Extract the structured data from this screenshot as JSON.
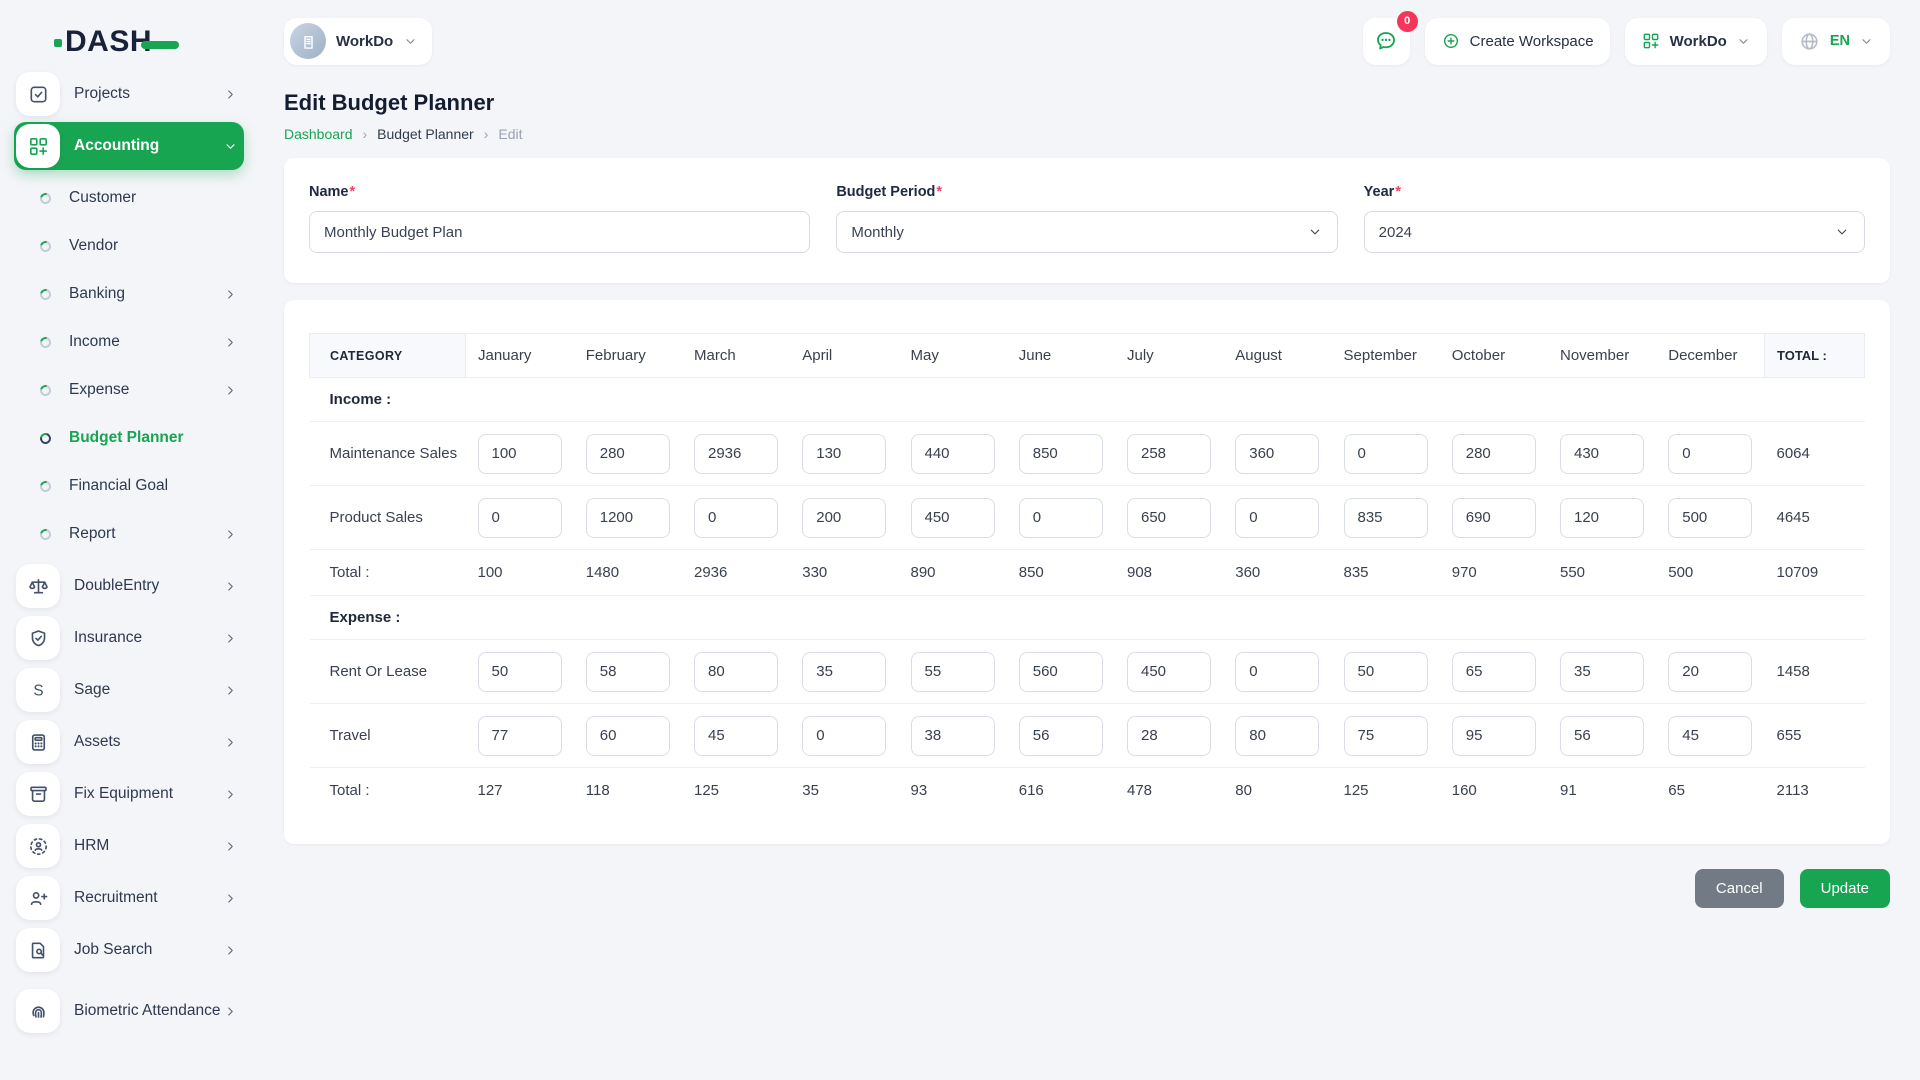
{
  "colors": {
    "accent": "#17a552",
    "badge": "#f5365c",
    "navy": "#18223a"
  },
  "brand": {
    "logo_text": "DASH"
  },
  "sidebar": {
    "items": [
      {
        "label": "Projects",
        "icon": "checkbox",
        "chevron": "right",
        "type": "top"
      },
      {
        "label": "Accounting",
        "icon": "grid-plus",
        "chevron": "down",
        "type": "top",
        "active": true
      },
      {
        "label": "Customer",
        "type": "sub"
      },
      {
        "label": "Vendor",
        "type": "sub"
      },
      {
        "label": "Banking",
        "type": "sub",
        "chevron": "right"
      },
      {
        "label": "Income",
        "type": "sub",
        "chevron": "right"
      },
      {
        "label": "Expense",
        "type": "sub",
        "chevron": "right"
      },
      {
        "label": "Budget Planner",
        "type": "sub",
        "active": true
      },
      {
        "label": "Financial Goal",
        "type": "sub"
      },
      {
        "label": "Report",
        "type": "sub",
        "chevron": "right"
      },
      {
        "label": "DoubleEntry",
        "icon": "scales",
        "chevron": "right",
        "type": "top"
      },
      {
        "label": "Insurance",
        "icon": "shield-check",
        "chevron": "right",
        "type": "top"
      },
      {
        "label": "Sage",
        "icon": "sage",
        "chevron": "right",
        "type": "top"
      },
      {
        "label": "Assets",
        "icon": "calculator",
        "chevron": "right",
        "type": "top"
      },
      {
        "label": "Fix Equipment",
        "icon": "archive",
        "chevron": "right",
        "type": "top"
      },
      {
        "label": "HRM",
        "icon": "person-frame",
        "chevron": "right",
        "type": "top"
      },
      {
        "label": "Recruitment",
        "icon": "person-plus",
        "chevron": "right",
        "type": "top"
      },
      {
        "label": "Job Search",
        "icon": "doc-search",
        "chevron": "right",
        "type": "top"
      },
      {
        "label": "Biometric Attendance",
        "icon": "fingerprint",
        "chevron": "right",
        "type": "top",
        "twoline": true
      }
    ]
  },
  "topbar": {
    "workspace_chip": "WorkDo",
    "messages_badge": "0",
    "create_workspace": "Create Workspace",
    "workspace_menu": "WorkDo",
    "language": "EN"
  },
  "page": {
    "title": "Edit Budget Planner",
    "breadcrumb": [
      "Dashboard",
      "Budget Planner",
      "Edit"
    ],
    "breadcrumb_separator": "›"
  },
  "form": {
    "required_mark": "*",
    "name": {
      "label": "Name",
      "value": "Monthly Budget Plan"
    },
    "period": {
      "label": "Budget Period",
      "value": "Monthly"
    },
    "year": {
      "label": "Year",
      "value": "2024"
    }
  },
  "table": {
    "category_header": "CATEGORY",
    "total_header": "TOTAL :",
    "months": [
      "January",
      "February",
      "March",
      "April",
      "May",
      "June",
      "July",
      "August",
      "September",
      "October",
      "November",
      "December"
    ],
    "sections": [
      {
        "label": "Income :",
        "rows": [
          {
            "label": "Maintenance Sales",
            "values": [
              "100",
              "280",
              "2936",
              "130",
              "440",
              "850",
              "258",
              "360",
              "0",
              "280",
              "430",
              "0"
            ],
            "total": "6064"
          },
          {
            "label": "Product Sales",
            "values": [
              "0",
              "1200",
              "0",
              "200",
              "450",
              "0",
              "650",
              "0",
              "835",
              "690",
              "120",
              "500"
            ],
            "total": "4645"
          }
        ],
        "total_row": {
          "label": "Total :",
          "values": [
            "100",
            "1480",
            "2936",
            "330",
            "890",
            "850",
            "908",
            "360",
            "835",
            "970",
            "550",
            "500"
          ],
          "total": "10709"
        }
      },
      {
        "label": "Expense :",
        "rows": [
          {
            "label": "Rent Or Lease",
            "values": [
              "50",
              "58",
              "80",
              "35",
              "55",
              "560",
              "450",
              "0",
              "50",
              "65",
              "35",
              "20"
            ],
            "total": "1458"
          },
          {
            "label": "Travel",
            "values": [
              "77",
              "60",
              "45",
              "0",
              "38",
              "56",
              "28",
              "80",
              "75",
              "95",
              "56",
              "45"
            ],
            "total": "655"
          }
        ],
        "total_row": {
          "label": "Total :",
          "values": [
            "127",
            "118",
            "125",
            "35",
            "93",
            "616",
            "478",
            "80",
            "125",
            "160",
            "91",
            "65"
          ],
          "total": "2113"
        }
      }
    ]
  },
  "actions": {
    "cancel": "Cancel",
    "update": "Update"
  }
}
